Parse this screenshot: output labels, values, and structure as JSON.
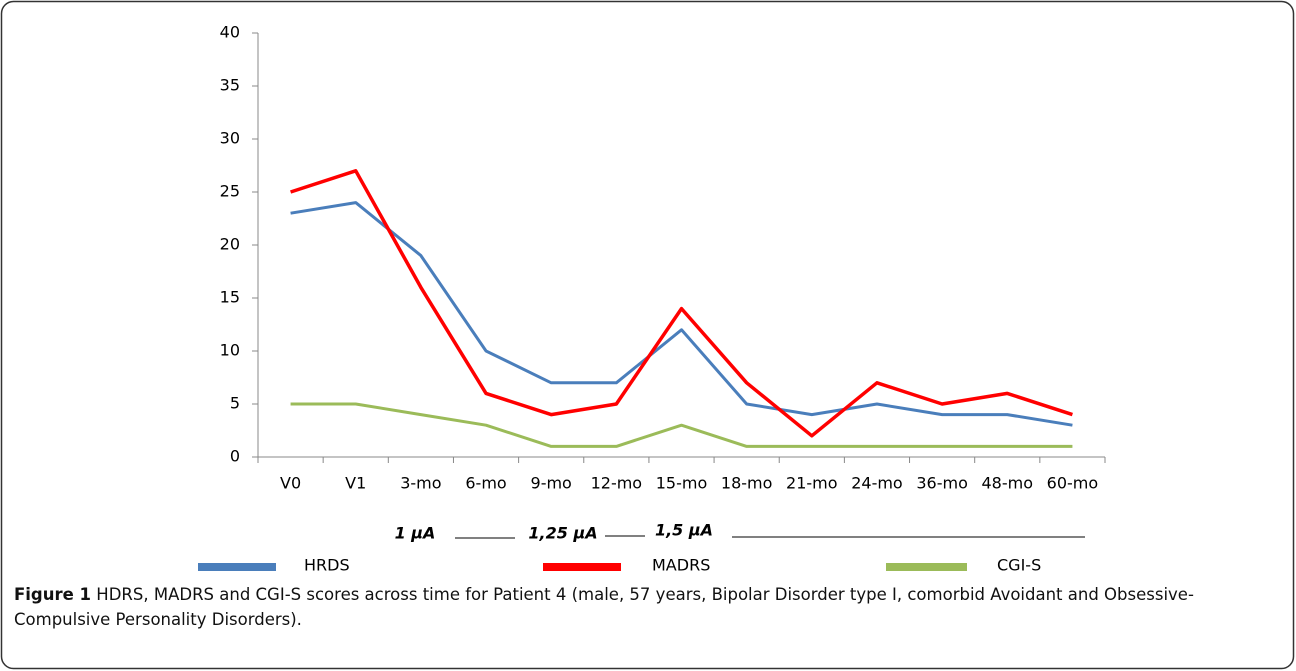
{
  "chart_data": {
    "type": "line",
    "categories": [
      "V0",
      "V1",
      "3-mo",
      "6-mo",
      "9-mo",
      "12-mo",
      "15-mo",
      "18-mo",
      "21-mo",
      "24-mo",
      "36-mo",
      "48-mo",
      "60-mo"
    ],
    "series": [
      {
        "name": "HRDS",
        "color": "#4a7ebb",
        "values": [
          23,
          24,
          19,
          10,
          7,
          7,
          12,
          5,
          4,
          5,
          4,
          4,
          3
        ]
      },
      {
        "name": "MADRS",
        "color": "#ff0000",
        "values": [
          25,
          27,
          16,
          6,
          4,
          5,
          14,
          7,
          2,
          7,
          5,
          6,
          4
        ]
      },
      {
        "name": "CGI-S",
        "color": "#9bbb59",
        "values": [
          5,
          5,
          4,
          3,
          1,
          1,
          3,
          1,
          1,
          1,
          1,
          1,
          1
        ]
      }
    ],
    "ylim": [
      0,
      40
    ],
    "yticks": [
      0,
      5,
      10,
      15,
      20,
      25,
      30,
      35,
      40
    ],
    "annotations": [
      "1 µA",
      "1,25 µA",
      "1,5 µA"
    ],
    "caption_label": "Figure 1",
    "caption": "HDRS, MADRS and CGI-S scores across time for Patient 4 (male, 57 years, Bipolar Disorder type I, comorbid Avoidant and Obsessive-Compulsive Personality Disorders)."
  }
}
